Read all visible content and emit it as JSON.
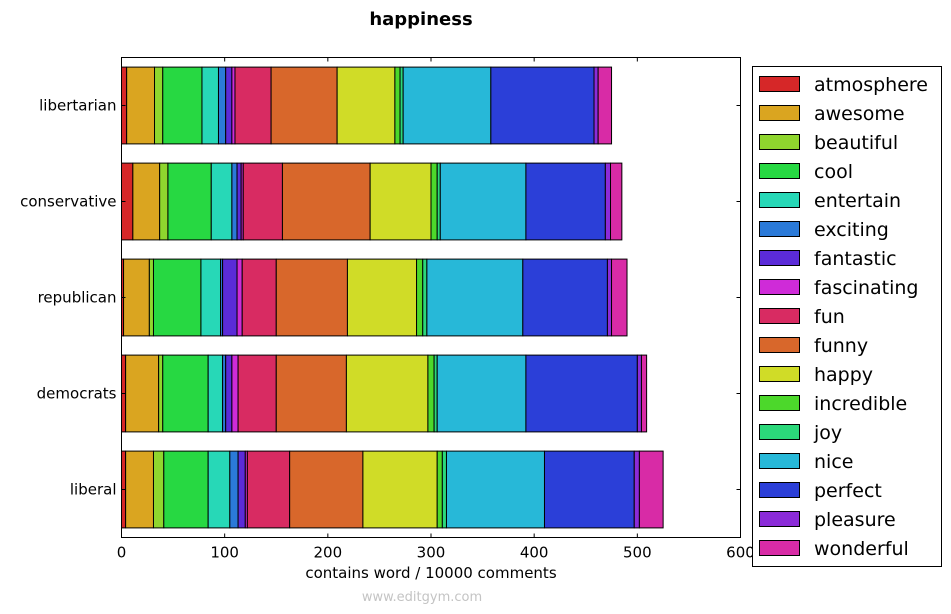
{
  "chart_data": {
    "type": "bar",
    "orientation": "horizontal",
    "stacked": true,
    "title": "happiness",
    "xlabel": "contains word / 10000 comments",
    "ylabel": "",
    "xlim": [
      0,
      600
    ],
    "xticks": [
      "0",
      "100",
      "200",
      "300",
      "400",
      "500",
      "600"
    ],
    "categories": [
      "libertarian",
      "conservative",
      "republican",
      "democrats",
      "liberal"
    ],
    "legend_position": "right",
    "series": [
      {
        "name": "atmosphere",
        "color": "#d62728",
        "values": [
          5,
          11,
          2,
          4,
          4
        ]
      },
      {
        "name": "awesome",
        "color": "#daa520",
        "values": [
          27,
          26,
          25,
          32,
          27
        ]
      },
      {
        "name": "beautiful",
        "color": "#8fd62e",
        "values": [
          8,
          8,
          4,
          4,
          10
        ]
      },
      {
        "name": "cool",
        "color": "#27d842",
        "values": [
          38,
          42,
          46,
          44,
          43
        ]
      },
      {
        "name": "entertain",
        "color": "#27d8b7",
        "values": [
          16,
          20,
          19,
          14,
          21
        ]
      },
      {
        "name": "exciting",
        "color": "#2b7ad8",
        "values": [
          7,
          5,
          2,
          3,
          8
        ]
      },
      {
        "name": "fantastic",
        "color": "#5b2bd8",
        "values": [
          6,
          4,
          14,
          6,
          7
        ]
      },
      {
        "name": "fascinating",
        "color": "#cf2bd8",
        "values": [
          3,
          2,
          5,
          6,
          2
        ]
      },
      {
        "name": "fun",
        "color": "#d82b62",
        "values": [
          35,
          38,
          33,
          37,
          41
        ]
      },
      {
        "name": "funny",
        "color": "#d8672b",
        "values": [
          64,
          85,
          69,
          68,
          71
        ]
      },
      {
        "name": "happy",
        "color": "#d0dc27",
        "values": [
          56,
          59,
          67,
          79,
          72
        ]
      },
      {
        "name": "incredible",
        "color": "#4cd82b",
        "values": [
          5,
          6,
          6,
          6,
          5
        ]
      },
      {
        "name": "joy",
        "color": "#2bd87a",
        "values": [
          3,
          3,
          4,
          3,
          4
        ]
      },
      {
        "name": "nice",
        "color": "#27b8d8",
        "values": [
          85,
          83,
          93,
          86,
          95
        ]
      },
      {
        "name": "perfect",
        "color": "#2b3fd8",
        "values": [
          100,
          77,
          82,
          108,
          87
        ]
      },
      {
        "name": "pleasure",
        "color": "#8b2bd8",
        "values": [
          4,
          5,
          4,
          4,
          5
        ]
      },
      {
        "name": "wonderful",
        "color": "#d82ba6",
        "values": [
          13,
          11,
          15,
          5,
          23
        ]
      }
    ]
  },
  "footer": {
    "watermark": "www.editgym.com"
  }
}
